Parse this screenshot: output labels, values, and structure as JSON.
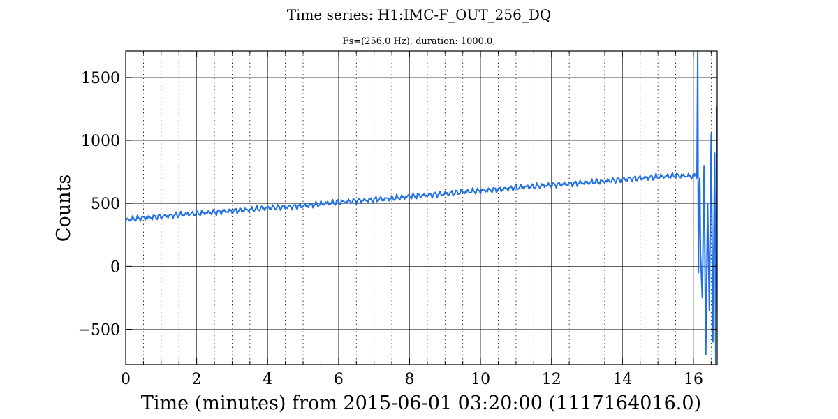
{
  "chart_data": {
    "type": "line",
    "title": "Time series:  H1:IMC-F_OUT_256_DQ",
    "subtitle": "Fs=(256.0 Hz), duration: 1000.0,",
    "xlabel": "Time (minutes) from 2015-06-01 03:20:00 (1117164016.0)",
    "ylabel": "Counts",
    "xlim": [
      0,
      16.67
    ],
    "ylim": [
      -780,
      1710
    ],
    "xticks": [
      0,
      2,
      4,
      6,
      8,
      10,
      12,
      14,
      16
    ],
    "xtick_labels": [
      "0",
      "2",
      "4",
      "6",
      "8",
      "10",
      "12",
      "14",
      "16"
    ],
    "x_minor_step": 0.5,
    "yticks": [
      -500,
      0,
      500,
      1000,
      1500
    ],
    "ytick_labels": [
      "−500",
      "0",
      "500",
      "1000",
      "1500"
    ],
    "grid": true,
    "color": "#1f6fe5",
    "series": [
      {
        "name": "",
        "x": [
          0,
          0.5,
          1,
          1.5,
          2,
          2.5,
          3,
          3.5,
          4,
          4.5,
          5,
          5.5,
          6,
          6.5,
          7,
          7.5,
          8,
          8.5,
          9,
          9.5,
          10,
          10.5,
          11,
          11.5,
          12,
          12.5,
          13,
          13.5,
          14,
          14.5,
          15,
          15.5,
          16,
          16.1,
          16.12,
          16.14,
          16.16,
          16.18,
          16.2,
          16.25,
          16.3,
          16.35,
          16.4,
          16.45,
          16.5,
          16.55,
          16.6,
          16.63,
          16.66
        ],
        "y": [
          370,
          385,
          395,
          410,
          420,
          430,
          440,
          450,
          465,
          470,
          480,
          495,
          510,
          520,
          530,
          540,
          555,
          565,
          575,
          590,
          600,
          610,
          625,
          635,
          645,
          655,
          665,
          675,
          690,
          700,
          710,
          720,
          715,
          730,
          1710,
          -50,
          500,
          700,
          100,
          -250,
          800,
          -700,
          500,
          -350,
          1050,
          -600,
          900,
          -800,
          1270
        ]
      }
    ]
  }
}
